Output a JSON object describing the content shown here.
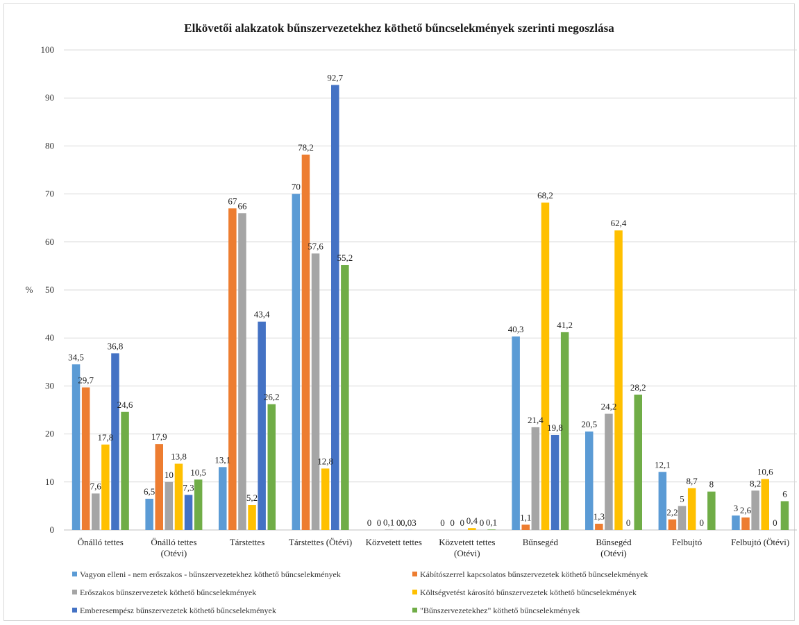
{
  "chart_data": {
    "type": "bar",
    "title": "Elkövetői alakzatok bűnszervezetekhez köthető bűncselekmények szerinti megoszlása",
    "ylabel": "%",
    "ylim": [
      0,
      100
    ],
    "yticks": [
      0,
      10,
      20,
      30,
      40,
      50,
      60,
      70,
      80,
      90,
      100
    ],
    "grid": true,
    "legend_position": "bottom",
    "categories": [
      [
        "Önálló tettes"
      ],
      [
        "Önálló tettes",
        "(Otévi)"
      ],
      [
        "Társtettes"
      ],
      [
        "Társtettes (Ötévi)"
      ],
      [
        "Közvetett tettes"
      ],
      [
        "Közvetett tettes",
        "(Otévi)"
      ],
      [
        "Bűnsegéd"
      ],
      [
        "Bűnsegéd",
        "(Otévi)"
      ],
      [
        "Felbujtó"
      ],
      [
        "Felbujtó (Ötévi)"
      ]
    ],
    "series": [
      {
        "name": "Vagyon elleni - nem erőszakos - bűnszervezetekhez köthető bűncselekmények",
        "color": "#5B9BD5",
        "values": [
          34.5,
          6.5,
          13.1,
          70,
          0,
          0,
          40.3,
          20.5,
          12.1,
          3
        ],
        "labels": [
          "34,5",
          "6,5",
          "13,1",
          "70",
          "0",
          "0",
          "40,3",
          "20,5",
          "12,1",
          "3"
        ]
      },
      {
        "name": "Kábítószerrel kapcsolatos bűnszervezetek köthető bűncselekmények",
        "color": "#ED7D31",
        "values": [
          29.7,
          17.9,
          67,
          78.2,
          0,
          0,
          1.1,
          1.3,
          2.2,
          2.6
        ],
        "labels": [
          "29,7",
          "17,9",
          "67",
          "78,2",
          "0",
          "0",
          "1,1",
          "1,3",
          "2,2",
          "2,6"
        ]
      },
      {
        "name": "Erőszakos bűnszervezetek köthető bűncselekmények",
        "color": "#A5A5A5",
        "values": [
          7.6,
          10,
          66,
          57.6,
          0.1,
          0,
          21.4,
          24.2,
          5,
          8.2
        ],
        "labels": [
          "7,6",
          "10",
          "66",
          "57,6",
          "0,1",
          "0",
          "21,4",
          "24,2",
          "5",
          "8,2"
        ]
      },
      {
        "name": "Költségvetést károsító bűnszervezetek köthető bűncselekmények",
        "color": "#FFC000",
        "values": [
          17.8,
          13.8,
          5.2,
          12.8,
          0,
          0.4,
          68.2,
          62.4,
          8.7,
          10.6
        ],
        "labels": [
          "17,8",
          "13,8",
          "5,2",
          "12,8",
          "0",
          "0,4",
          "68,2",
          "62,4",
          "8,7",
          "10,6"
        ]
      },
      {
        "name": "Emberesempész bűnszervezetek köthető bűncselekmények",
        "color": "#4472C4",
        "values": [
          36.8,
          7.3,
          43.4,
          92.7,
          0.03,
          0,
          19.8,
          0,
          0,
          0
        ],
        "labels": [
          "36,8",
          "7,3",
          "43,4",
          "92,7",
          "0,03",
          "0",
          "19,8",
          "0",
          "0",
          "0"
        ]
      },
      {
        "name": "\"Bűnszervezetekhez\" köthető bűncselekmények",
        "color": "#70AD47",
        "values": [
          24.6,
          10.5,
          26.2,
          55.2,
          0,
          0.1,
          41.2,
          28.2,
          8,
          6
        ],
        "labels": [
          "24,6",
          "10,5",
          "26,2",
          "55,2",
          "",
          "0,1",
          "41,2",
          "28,2",
          "8",
          "6"
        ]
      }
    ]
  }
}
